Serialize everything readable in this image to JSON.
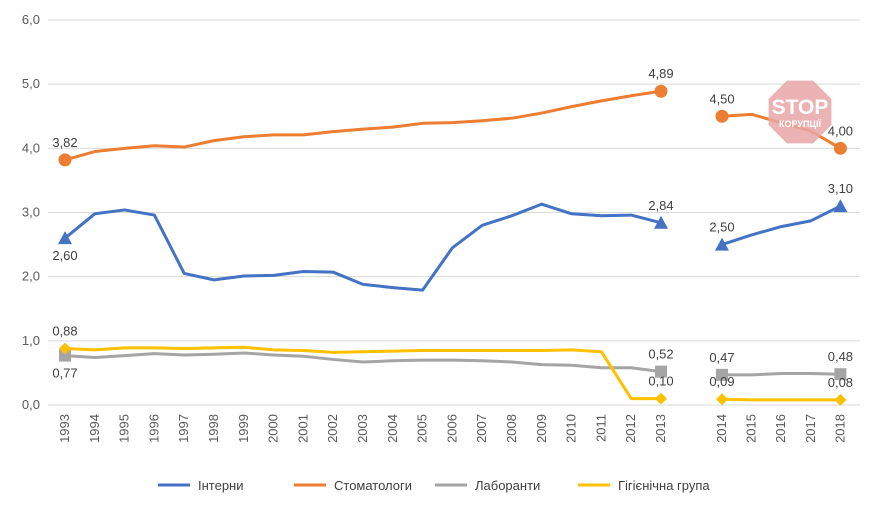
{
  "chart_data": {
    "type": "line",
    "categories": [
      "1993",
      "1994",
      "1995",
      "1996",
      "1997",
      "1998",
      "1999",
      "2000",
      "2001",
      "2002",
      "2003",
      "2004",
      "2005",
      "2006",
      "2007",
      "2008",
      "2009",
      "2010",
      "2011",
      "2012",
      "2013",
      "2014",
      "2015",
      "2016",
      "2017",
      "2018"
    ],
    "ylim": [
      0,
      6
    ],
    "yticks": [
      "0,0",
      "1,0",
      "2,0",
      "3,0",
      "4,0",
      "5,0",
      "6,0"
    ],
    "grid": "horizontal",
    "legend_position": "bottom",
    "series": [
      {
        "name": "Інтерни",
        "color": "#4472C4",
        "marker": "triangle",
        "values": [
          2.6,
          2.98,
          3.04,
          2.96,
          2.05,
          1.95,
          2.01,
          2.02,
          2.08,
          2.07,
          1.88,
          1.83,
          1.79,
          2.45,
          2.8,
          2.95,
          3.13,
          2.98,
          2.95,
          2.96,
          2.84,
          2.5,
          2.65,
          2.78,
          2.87,
          3.1
        ],
        "labels": [
          {
            "index": 0,
            "text": "2,60",
            "pos": "below"
          },
          {
            "index": 20,
            "text": "2,84",
            "pos": "above"
          },
          {
            "index": 21,
            "text": "2,50",
            "pos": "above"
          },
          {
            "index": 25,
            "text": "3,10",
            "pos": "above"
          }
        ]
      },
      {
        "name": "Стоматологи",
        "color": "#ED7D31",
        "marker": "circle",
        "values": [
          3.82,
          3.95,
          4.0,
          4.04,
          4.02,
          4.12,
          4.18,
          4.21,
          4.21,
          4.26,
          4.3,
          4.33,
          4.39,
          4.4,
          4.43,
          4.47,
          4.55,
          4.65,
          4.74,
          4.82,
          4.89,
          4.5,
          4.53,
          4.4,
          4.27,
          4.0
        ],
        "labels": [
          {
            "index": 0,
            "text": "3,82",
            "pos": "above"
          },
          {
            "index": 20,
            "text": "4,89",
            "pos": "above"
          },
          {
            "index": 21,
            "text": "4,50",
            "pos": "above"
          },
          {
            "index": 25,
            "text": "4,00",
            "pos": "above"
          }
        ]
      },
      {
        "name": "Лаборанти",
        "color": "#A5A5A5",
        "marker": "square",
        "values": [
          0.77,
          0.74,
          0.77,
          0.8,
          0.78,
          0.79,
          0.81,
          0.78,
          0.76,
          0.71,
          0.67,
          0.69,
          0.7,
          0.7,
          0.69,
          0.67,
          0.63,
          0.62,
          0.58,
          0.58,
          0.52,
          0.47,
          0.47,
          0.49,
          0.49,
          0.48
        ],
        "labels": [
          {
            "index": 0,
            "text": "0,77",
            "pos": "below"
          },
          {
            "index": 20,
            "text": "0,52",
            "pos": "above"
          },
          {
            "index": 21,
            "text": "0,47",
            "pos": "above"
          },
          {
            "index": 25,
            "text": "0,48",
            "pos": "above"
          }
        ]
      },
      {
        "name": "Гігієнічна група",
        "color": "#FFC000",
        "marker": "diamond",
        "values": [
          0.88,
          0.86,
          0.89,
          0.89,
          0.88,
          0.89,
          0.9,
          0.86,
          0.85,
          0.82,
          0.83,
          0.84,
          0.85,
          0.85,
          0.85,
          0.85,
          0.85,
          0.86,
          0.83,
          0.1,
          0.1,
          0.09,
          0.08,
          0.08,
          0.08,
          0.08
        ],
        "labels": [
          {
            "index": 0,
            "text": "0,88",
            "pos": "above"
          },
          {
            "index": 20,
            "text": "0,10",
            "pos": "above"
          },
          {
            "index": 21,
            "text": "0,09",
            "pos": "above"
          },
          {
            "index": 25,
            "text": "0,08",
            "pos": "above"
          }
        ]
      }
    ],
    "segment_break_after_index": 20
  },
  "watermark": {
    "text": "STOP",
    "subtext": "КОРУПЦІЇ",
    "color": "#E8A6A6"
  }
}
